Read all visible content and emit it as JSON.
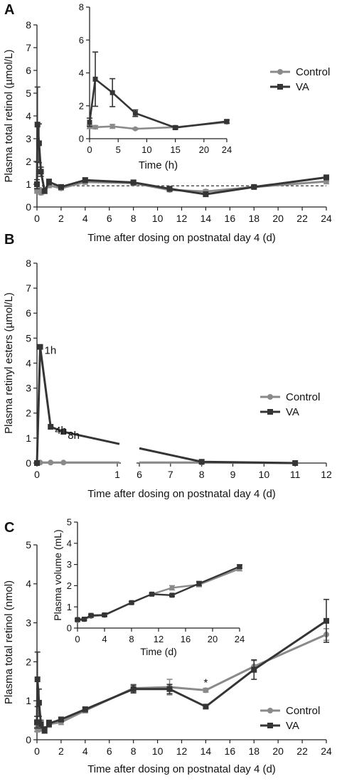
{
  "colors": {
    "control": "#8a8a8a",
    "va": "#353535",
    "reference": "#333333"
  },
  "panels": {
    "a": {
      "letter": "A"
    },
    "b": {
      "letter": "B"
    },
    "c": {
      "letter": "C"
    }
  },
  "chart_data": [
    {
      "id": "A-main",
      "type": "line",
      "xlabel": "Time after dosing on postnatal day 4 (d)",
      "ylabel": "Plasma total retinol (µmol/L)",
      "xlim": [
        0,
        24
      ],
      "ylim": [
        0,
        8
      ],
      "xticks": [
        0,
        2,
        4,
        6,
        8,
        10,
        12,
        14,
        16,
        18,
        20,
        22,
        24
      ],
      "yticks": [
        0,
        1,
        2,
        3,
        4,
        5,
        6,
        7,
        8
      ],
      "reference_line": {
        "y": 0.93,
        "style": "dashed"
      },
      "legend": "inset-right",
      "series": [
        {
          "name": "Control",
          "x": [
            0,
            0.04,
            0.17,
            0.33,
            0.63,
            1,
            2,
            4,
            8,
            11,
            14,
            18,
            24
          ],
          "y": [
            0.72,
            0.7,
            0.75,
            0.62,
            0.7,
            0.95,
            0.82,
            1.1,
            1.05,
            0.75,
            0.68,
            0.88,
            1.12
          ],
          "err": [
            0.1,
            0.1,
            0.1,
            0.08,
            0.1,
            0.1,
            0.08,
            0.1,
            0.1,
            0.08,
            0.08,
            0.06,
            0.1
          ]
        },
        {
          "name": "VA",
          "x": [
            0,
            0.04,
            0.17,
            0.33,
            0.63,
            1,
            2,
            4,
            8,
            11,
            14,
            18,
            24
          ],
          "y": [
            1.0,
            3.62,
            2.8,
            1.55,
            0.7,
            1.1,
            0.88,
            1.18,
            1.08,
            0.8,
            0.56,
            0.88,
            1.3
          ],
          "err": [
            0.2,
            1.65,
            0.85,
            0.2,
            0.1,
            0.12,
            0.08,
            0.1,
            0.1,
            0.1,
            0.1,
            0.06,
            0.1
          ]
        }
      ]
    },
    {
      "id": "A-inset",
      "type": "line",
      "xlabel": "Time (h)",
      "ylabel": "",
      "xlim": [
        0,
        24
      ],
      "ylim": [
        0,
        8
      ],
      "xticks": [
        0,
        5,
        10,
        15,
        20,
        24
      ],
      "yticks": [
        0,
        2,
        4,
        6,
        8
      ],
      "series": [
        {
          "name": "Control",
          "x": [
            0,
            1,
            4,
            8,
            15,
            24
          ],
          "y": [
            0.72,
            0.7,
            0.75,
            0.6,
            0.7,
            1.0
          ],
          "err": [
            0.1,
            0.1,
            0.12,
            0.05,
            0.1,
            0.08
          ]
        },
        {
          "name": "VA",
          "x": [
            0,
            1,
            4,
            8,
            15,
            24
          ],
          "y": [
            1.0,
            3.62,
            2.8,
            1.55,
            0.67,
            1.05
          ],
          "err": [
            0.25,
            1.65,
            0.85,
            0.2,
            0.1,
            0.1
          ]
        }
      ]
    },
    {
      "id": "B",
      "type": "line",
      "xlabel": "Time after dosing on postnatal day 4 (d)",
      "ylabel": "Plasma retinyl esters (µmol/L)",
      "xlim": [
        0,
        12
      ],
      "ylim": [
        0,
        8
      ],
      "axis_break": {
        "from": 1,
        "to": 5.3
      },
      "xticks": [
        0,
        1,
        6,
        7,
        8,
        9,
        10,
        11,
        12
      ],
      "yticks": [
        0,
        1,
        2,
        3,
        4,
        5,
        6,
        7,
        8
      ],
      "legend": "right",
      "annotations": [
        {
          "text": "1h",
          "x": 0.04,
          "y": 4.65
        },
        {
          "text": "4h",
          "x": 0.17,
          "y": 1.45
        },
        {
          "text": "8h",
          "x": 0.33,
          "y": 1.25
        }
      ],
      "series": [
        {
          "name": "Control",
          "x": [
            0,
            0.04,
            0.17,
            0.33,
            8,
            11
          ],
          "y": [
            0,
            0.02,
            0.02,
            0.02,
            0.02,
            0.0
          ]
        },
        {
          "name": "VA",
          "x": [
            0,
            0.04,
            0.17,
            0.33,
            8,
            11
          ],
          "y": [
            0,
            4.65,
            1.45,
            1.25,
            0.05,
            0.0
          ]
        }
      ]
    },
    {
      "id": "C-main",
      "type": "line",
      "xlabel": "Time after dosing on postnatal day 4 (d)",
      "ylabel": "Plasma total retinol (nmol)",
      "xlim": [
        0,
        24
      ],
      "ylim": [
        0,
        5
      ],
      "xticks": [
        0,
        2,
        4,
        6,
        8,
        10,
        12,
        14,
        16,
        18,
        20,
        22,
        24
      ],
      "yticks": [
        0,
        1,
        2,
        3,
        4,
        5
      ],
      "legend": "right",
      "annotations": [
        {
          "text": "*",
          "x": 14,
          "y": 1.27
        }
      ],
      "series": [
        {
          "name": "Control",
          "x": [
            0,
            0.04,
            0.17,
            0.33,
            0.63,
            1,
            2,
            4,
            8,
            11,
            14,
            18,
            24
          ],
          "y": [
            0.3,
            0.3,
            0.4,
            0.3,
            0.25,
            0.4,
            0.45,
            0.75,
            1.32,
            1.35,
            1.27,
            1.88,
            2.7
          ],
          "err": [
            0.08,
            0.1,
            0.1,
            0.08,
            0.08,
            0.08,
            0.06,
            0.06,
            0.1,
            0.2,
            0.05,
            0.15,
            0.15
          ]
        },
        {
          "name": "VA",
          "x": [
            0,
            0.04,
            0.17,
            0.33,
            0.63,
            1,
            2,
            4,
            8,
            11,
            14,
            18,
            24
          ],
          "y": [
            0.45,
            1.55,
            0.95,
            0.4,
            0.25,
            0.42,
            0.52,
            0.78,
            1.3,
            1.3,
            0.85,
            1.8,
            3.05
          ],
          "err": [
            0.15,
            0.7,
            0.35,
            0.1,
            0.08,
            0.08,
            0.06,
            0.06,
            0.1,
            0.12,
            0.05,
            0.25,
            0.55
          ]
        }
      ]
    },
    {
      "id": "C-inset",
      "type": "line",
      "xlabel": "Time (d)",
      "ylabel": "Plasma volume (mL)",
      "xlim": [
        0,
        24
      ],
      "ylim": [
        0,
        5
      ],
      "xticks": [
        0,
        4,
        8,
        12,
        16,
        20,
        24
      ],
      "yticks": [
        0,
        1,
        2,
        3,
        4,
        5
      ],
      "series": [
        {
          "name": "Control",
          "x": [
            0,
            1,
            2,
            4,
            8,
            11,
            14,
            18,
            24
          ],
          "y": [
            0.35,
            0.4,
            0.55,
            0.6,
            1.2,
            1.6,
            1.9,
            2.05,
            2.8
          ],
          "err": [
            0.05,
            0.05,
            0.05,
            0.05,
            0.05,
            0.05,
            0.1,
            0.1,
            0.1
          ]
        },
        {
          "name": "VA",
          "x": [
            0,
            1,
            2,
            4,
            8,
            11,
            14,
            18,
            24
          ],
          "y": [
            0.4,
            0.42,
            0.6,
            0.62,
            1.2,
            1.6,
            1.55,
            2.1,
            2.9
          ],
          "err": [
            0.05,
            0.05,
            0.05,
            0.05,
            0.05,
            0.05,
            0.05,
            0.1,
            0.08
          ]
        }
      ]
    }
  ]
}
